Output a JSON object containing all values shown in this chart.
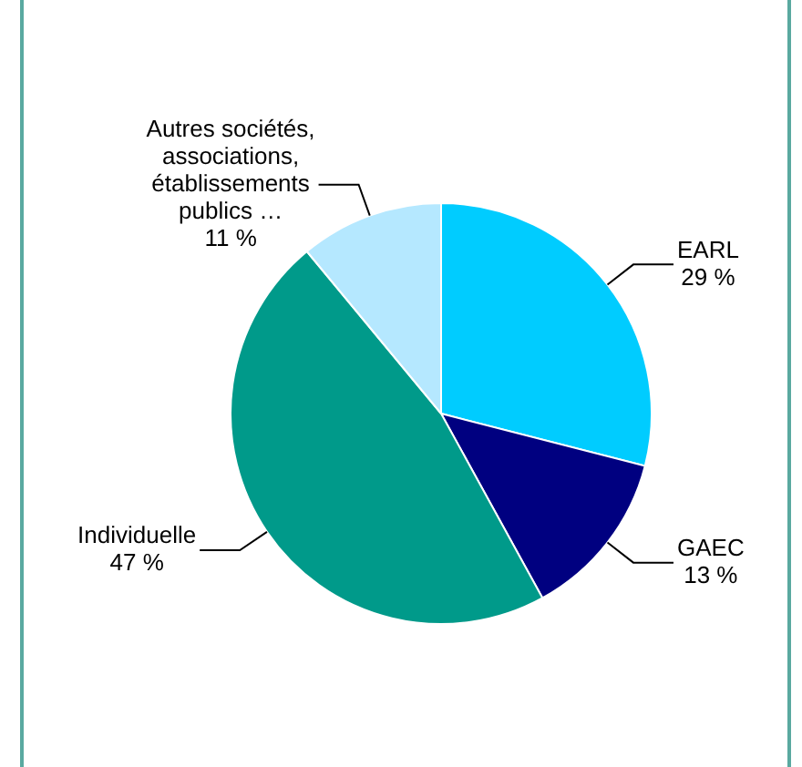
{
  "chart_data": {
    "type": "pie",
    "categories": [
      "EARL",
      "GAEC",
      "Individuelle",
      "Autres sociétés, associations, établissements publics …"
    ],
    "values": [
      29,
      13,
      47,
      11
    ],
    "colors": [
      "#00ccff",
      "#000080",
      "#009a8a",
      "#b5e8ff"
    ],
    "value_labels": [
      "29 %",
      "13 %",
      "47 %",
      "11 %"
    ],
    "legend": false
  }
}
